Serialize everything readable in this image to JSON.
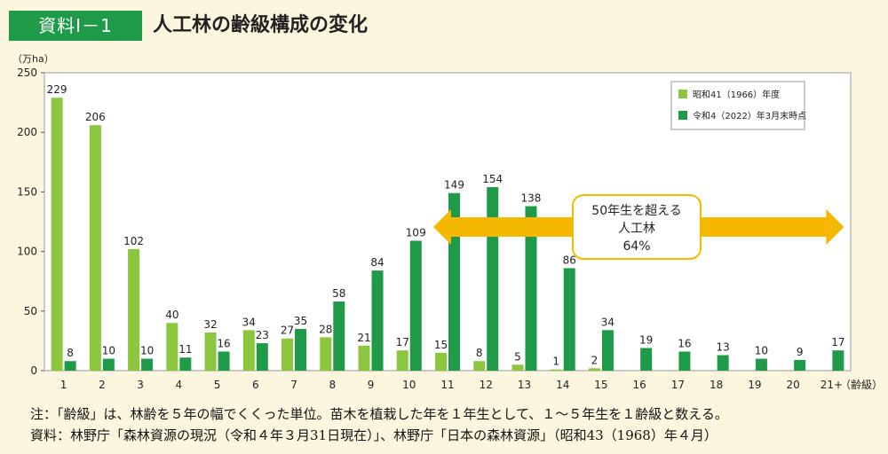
{
  "header": {
    "badge": "資料Ⅰ－1",
    "title": "人工林の齢級構成の変化"
  },
  "chart_data": {
    "type": "bar",
    "title": "",
    "ylabel": "（万ha）",
    "xlabel": "（齢級）",
    "ylim": [
      0,
      250
    ],
    "yticks": [
      0,
      50,
      100,
      150,
      200,
      250
    ],
    "grid": false,
    "legend": "top-right",
    "categories": [
      "1",
      "2",
      "3",
      "4",
      "5",
      "6",
      "7",
      "8",
      "9",
      "10",
      "11",
      "12",
      "13",
      "14",
      "15",
      "16",
      "17",
      "18",
      "19",
      "20",
      "21+"
    ],
    "series": [
      {
        "name": "昭和41（1966）年度",
        "color": "#8cc63f",
        "values": [
          229,
          206,
          102,
          40,
          32,
          34,
          27,
          28,
          21,
          17,
          15,
          8,
          5,
          1,
          2,
          null,
          null,
          null,
          null,
          null,
          null
        ]
      },
      {
        "name": "令和4（2022）年3月末時点",
        "color": "#1f9a48",
        "values": [
          8,
          10,
          10,
          11,
          16,
          23,
          35,
          58,
          84,
          109,
          149,
          154,
          138,
          86,
          34,
          19,
          16,
          13,
          10,
          9,
          17
        ]
      }
    ],
    "annotation": {
      "lines": [
        "50年生を超える",
        "人工林",
        "64%"
      ],
      "arrow_color": "#f5b800",
      "from_category": "11",
      "to_category": "21+"
    }
  },
  "notes": {
    "note1": "注：「齢級」は、林齢を５年の幅でくくった単位。苗木を植栽した年を１年生として、１～５年生を１齢級と数える。",
    "note2": "資料：林野庁「森林資源の現況（令和４年３月31日現在）」、林野庁「日本の森林資源」（昭和43（1968）年４月）"
  }
}
